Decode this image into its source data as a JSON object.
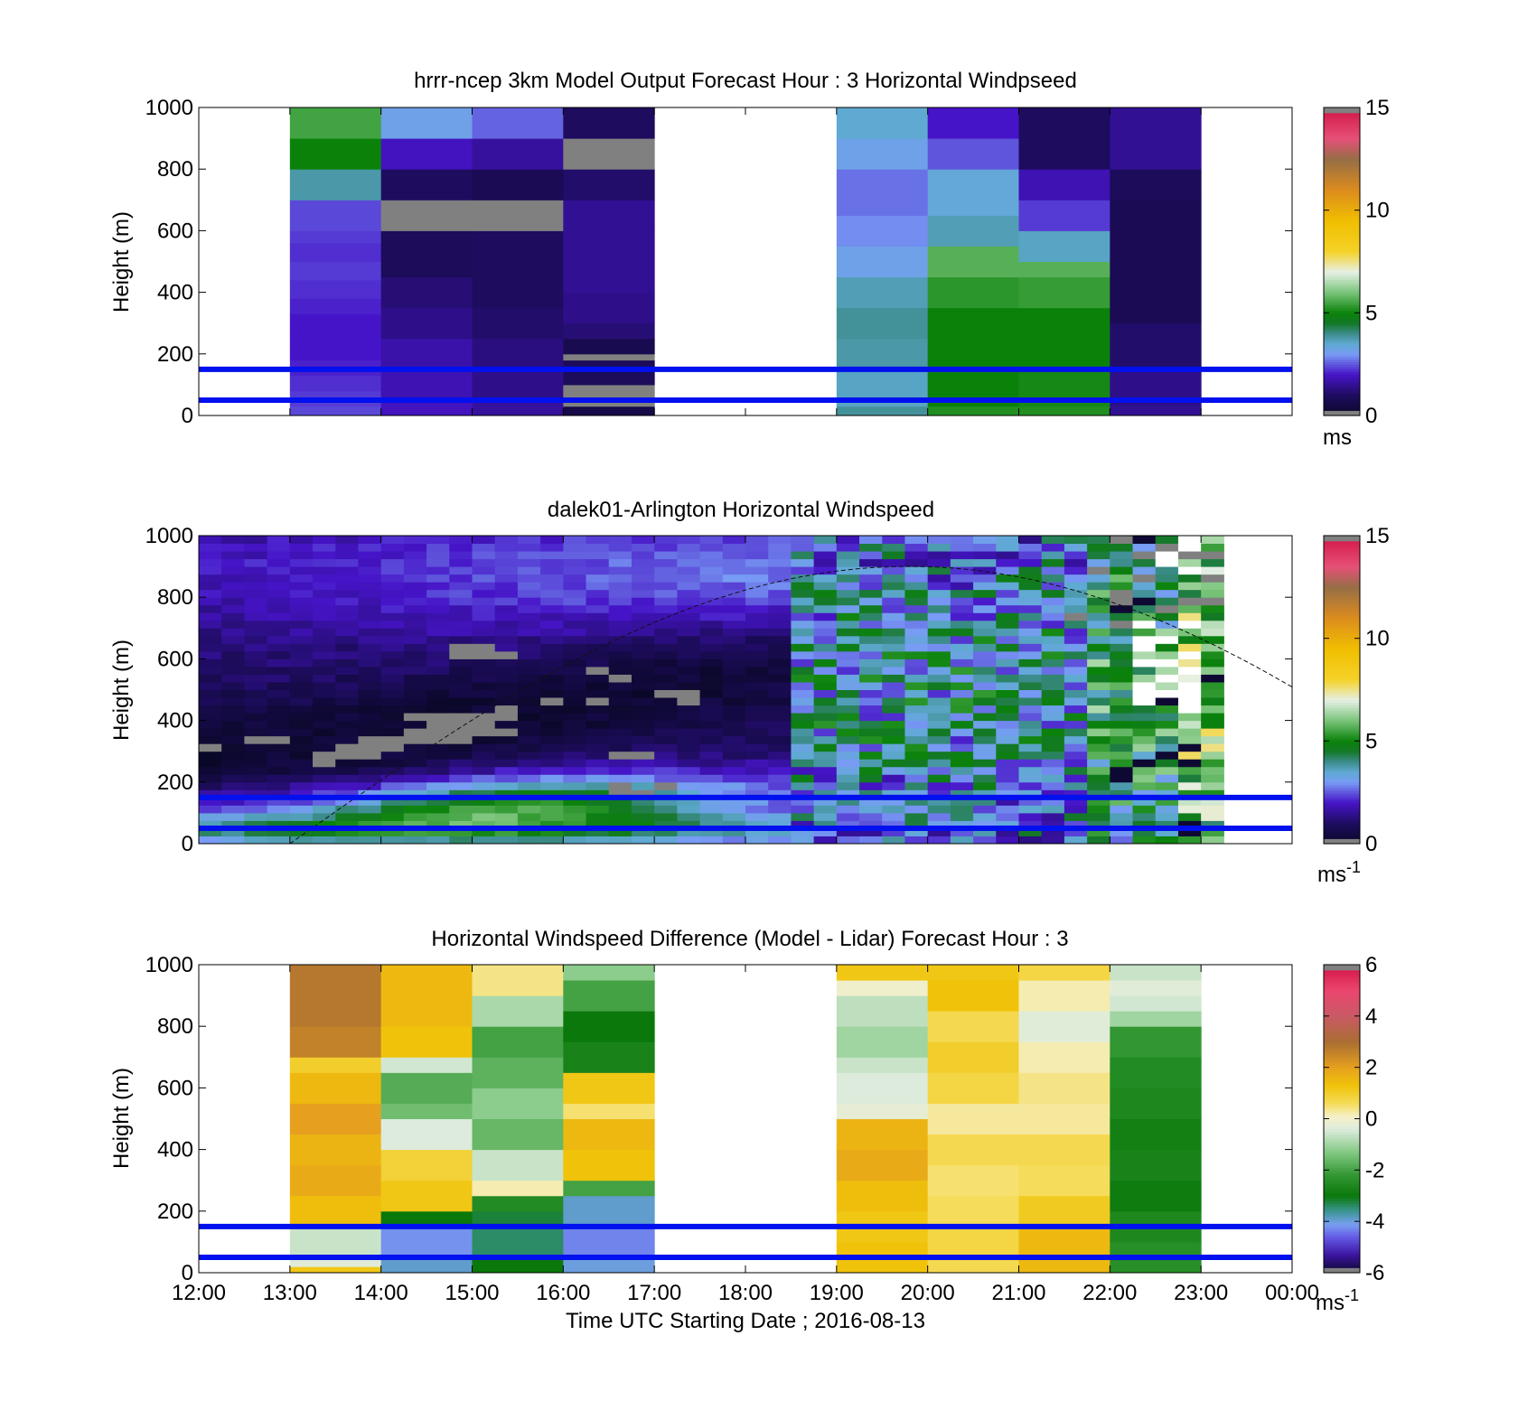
{
  "chart_data": [
    {
      "type": "heatmap",
      "title": "hrrr-ncep 3km Model Output   Forecast Hour : 3 Horizontal Windpseed",
      "ylabel": "Height (m)",
      "xlabel": "",
      "ylim": [
        0,
        1000
      ],
      "yticks": [
        "0",
        "200",
        "400",
        "600",
        "800",
        "1000"
      ],
      "colorbar": {
        "ticks": [
          "0",
          "5",
          "10",
          "15"
        ],
        "range": [
          0,
          15
        ],
        "unit": "ms",
        "unit_sup": ""
      },
      "scale": "speed",
      "columns": [
        {
          "start_hour": 13,
          "cells": [
            [
              0,
              30,
              2.4
            ],
            [
              30,
              80,
              2.3
            ],
            [
              80,
              130,
              2.2
            ],
            [
              130,
              180,
              2.1
            ],
            [
              180,
              230,
              2.0
            ],
            [
              230,
              280,
              2.0
            ],
            [
              280,
              330,
              2.0
            ],
            [
              330,
              380,
              2.1
            ],
            [
              380,
              440,
              2.2
            ],
            [
              440,
              500,
              2.3
            ],
            [
              500,
              560,
              2.2
            ],
            [
              560,
              600,
              2.3
            ],
            [
              600,
              700,
              2.4
            ],
            [
              700,
              800,
              3.8
            ],
            [
              800,
              900,
              5.0
            ],
            [
              900,
              1000,
              5.5
            ]
          ]
        },
        {
          "start_hour": 14,
          "cells": [
            [
              0,
              50,
              1.9
            ],
            [
              50,
              150,
              1.8
            ],
            [
              150,
              250,
              1.7
            ],
            [
              250,
              350,
              1.4
            ],
            [
              350,
              450,
              1.2
            ],
            [
              450,
              600,
              0.9
            ],
            [
              600,
              700,
              -1
            ],
            [
              700,
              800,
              1.0
            ],
            [
              800,
              900,
              1.9
            ],
            [
              900,
              1000,
              3.2
            ]
          ]
        },
        {
          "start_hour": 15,
          "cells": [
            [
              0,
              50,
              1.6
            ],
            [
              50,
              150,
              1.4
            ],
            [
              150,
              250,
              1.3
            ],
            [
              250,
              350,
              1.1
            ],
            [
              350,
              600,
              1.0
            ],
            [
              600,
              700,
              -1
            ],
            [
              700,
              800,
              0.8
            ],
            [
              800,
              900,
              1.6
            ],
            [
              900,
              1000,
              2.6
            ]
          ]
        },
        {
          "start_hour": 16,
          "cells": [
            [
              0,
              30,
              0.6
            ],
            [
              30,
              100,
              -1
            ],
            [
              100,
              180,
              0.9
            ],
            [
              180,
              200,
              -1
            ],
            [
              200,
              250,
              0.7
            ],
            [
              250,
              300,
              1.2
            ],
            [
              300,
              400,
              1.4
            ],
            [
              400,
              600,
              1.5
            ],
            [
              600,
              700,
              1.5
            ],
            [
              700,
              800,
              1.1
            ],
            [
              800,
              900,
              -1
            ],
            [
              900,
              1000,
              1.0
            ]
          ]
        },
        {
          "start_hour": 19,
          "cells": [
            [
              0,
              30,
              3.9
            ],
            [
              30,
              150,
              3.6
            ],
            [
              150,
              250,
              3.8
            ],
            [
              250,
              350,
              3.9
            ],
            [
              350,
              450,
              3.7
            ],
            [
              450,
              550,
              3.2
            ],
            [
              550,
              650,
              2.9
            ],
            [
              650,
              800,
              2.7
            ],
            [
              800,
              900,
              3.2
            ],
            [
              900,
              1000,
              3.5
            ]
          ]
        },
        {
          "start_hour": 20,
          "cells": [
            [
              0,
              30,
              5.2
            ],
            [
              30,
              150,
              5.0
            ],
            [
              150,
              350,
              5.0
            ],
            [
              350,
              450,
              5.3
            ],
            [
              450,
              550,
              5.7
            ],
            [
              550,
              650,
              3.7
            ],
            [
              650,
              800,
              3.4
            ],
            [
              800,
              900,
              2.5
            ],
            [
              900,
              1000,
              2.0
            ]
          ]
        },
        {
          "start_hour": 21,
          "cells": [
            [
              0,
              30,
              5.2
            ],
            [
              30,
              150,
              5.1
            ],
            [
              150,
              350,
              5.0
            ],
            [
              350,
              450,
              5.4
            ],
            [
              450,
              500,
              5.7
            ],
            [
              500,
              600,
              3.6
            ],
            [
              600,
              700,
              2.3
            ],
            [
              700,
              800,
              1.8
            ],
            [
              800,
              900,
              1.0
            ],
            [
              900,
              1000,
              1.0
            ]
          ]
        },
        {
          "start_hour": 22,
          "cells": [
            [
              0,
              30,
              1.5
            ],
            [
              30,
              150,
              1.4
            ],
            [
              150,
              300,
              1.1
            ],
            [
              300,
              500,
              0.8
            ],
            [
              500,
              700,
              0.8
            ],
            [
              700,
              800,
              0.9
            ],
            [
              800,
              1000,
              1.5
            ]
          ]
        }
      ],
      "reference_lines_m": [
        50,
        150
      ]
    },
    {
      "type": "heatmap",
      "title": "dalek01-Arlington  Horizontal Windspeed",
      "ylabel": "Height (m)",
      "xlabel": "",
      "ylim": [
        0,
        1000
      ],
      "yticks": [
        "0",
        "200",
        "400",
        "600",
        "800",
        "1000"
      ],
      "colorbar": {
        "ticks": [
          "0",
          "5",
          "10",
          "15"
        ],
        "range": [
          0,
          15
        ],
        "unit": "ms",
        "unit_sup": "-1"
      },
      "scale": "speed",
      "time_range_hours": [
        12,
        24
      ],
      "data_end_hour": 23.25,
      "note_curve": "dashed curve rising from 13:00 at 0 m to ~900 m near 20:00 then falling to ~570 m at 00:00",
      "reference_lines_m": [
        50,
        150
      ]
    },
    {
      "type": "heatmap",
      "title": "Horizontal Windspeed Difference (Model - Lidar) Forecast Hour : 3",
      "ylabel": "Height (m)",
      "xlabel": "Time UTC  Starting Date ; 2016-08-13",
      "ylim": [
        0,
        1000
      ],
      "yticks": [
        "0",
        "200",
        "400",
        "600",
        "800",
        "1000"
      ],
      "xticks": [
        "12:00",
        "13:00",
        "14:00",
        "15:00",
        "16:00",
        "17:00",
        "18:00",
        "19:00",
        "20:00",
        "21:00",
        "22:00",
        "23:00",
        "00:00"
      ],
      "colorbar": {
        "ticks": [
          "-6",
          "-4",
          "-2",
          "0",
          "2",
          "4",
          "6"
        ],
        "range": [
          -6,
          6
        ],
        "unit": "ms",
        "unit_sup": "-1"
      },
      "scale": "diff",
      "columns": [
        {
          "start_hour": 13,
          "cells": [
            [
              0,
              20,
              1.2
            ],
            [
              20,
              50,
              -0.3
            ],
            [
              50,
              150,
              -0.6
            ],
            [
              150,
              250,
              1.4
            ],
            [
              250,
              350,
              1.8
            ],
            [
              350,
              450,
              1.6
            ],
            [
              450,
              550,
              2.0
            ],
            [
              550,
              650,
              1.5
            ],
            [
              650,
              700,
              1.0
            ],
            [
              700,
              800,
              2.6
            ],
            [
              800,
              1000,
              2.8
            ]
          ]
        },
        {
          "start_hour": 14,
          "cells": [
            [
              0,
              50,
              -3.9
            ],
            [
              50,
              150,
              -4.2
            ],
            [
              150,
              200,
              -3.0
            ],
            [
              200,
              300,
              1.2
            ],
            [
              300,
              400,
              0.9
            ],
            [
              400,
              500,
              -0.4
            ],
            [
              500,
              550,
              -1.5
            ],
            [
              550,
              650,
              -1.8
            ],
            [
              650,
              700,
              -0.5
            ],
            [
              700,
              800,
              1.3
            ],
            [
              800,
              1000,
              1.5
            ]
          ]
        },
        {
          "start_hour": 15,
          "cells": [
            [
              0,
              50,
              -3.0
            ],
            [
              50,
              150,
              -3.4
            ],
            [
              150,
              200,
              -3.2
            ],
            [
              200,
              250,
              -2.5
            ],
            [
              250,
              300,
              0.2
            ],
            [
              300,
              400,
              -0.6
            ],
            [
              400,
              500,
              -1.6
            ],
            [
              500,
              600,
              -1.2
            ],
            [
              600,
              700,
              -1.7
            ],
            [
              700,
              800,
              -2.0
            ],
            [
              800,
              900,
              -0.9
            ],
            [
              900,
              1000,
              0.4
            ]
          ]
        },
        {
          "start_hour": 16,
          "cells": [
            [
              0,
              50,
              -4.0
            ],
            [
              50,
              150,
              -4.3
            ],
            [
              150,
              250,
              -3.9
            ],
            [
              250,
              300,
              -2.0
            ],
            [
              300,
              400,
              1.3
            ],
            [
              400,
              500,
              1.5
            ],
            [
              500,
              550,
              0.5
            ],
            [
              550,
              650,
              1.2
            ],
            [
              650,
              750,
              -2.7
            ],
            [
              750,
              850,
              -3.0
            ],
            [
              850,
              950,
              -2.0
            ],
            [
              950,
              1000,
              -1.2
            ]
          ]
        },
        {
          "start_hour": 19,
          "cells": [
            [
              0,
              100,
              1.3
            ],
            [
              100,
              200,
              1.2
            ],
            [
              200,
              300,
              1.4
            ],
            [
              300,
              400,
              1.8
            ],
            [
              400,
              500,
              1.6
            ],
            [
              500,
              550,
              -0.2
            ],
            [
              550,
              650,
              -0.4
            ],
            [
              650,
              700,
              -0.6
            ],
            [
              700,
              800,
              -1.0
            ],
            [
              800,
              900,
              -0.7
            ],
            [
              900,
              950,
              0.0
            ],
            [
              950,
              1000,
              1.2
            ]
          ]
        },
        {
          "start_hour": 20,
          "cells": [
            [
              0,
              50,
              0.7
            ],
            [
              50,
              150,
              0.8
            ],
            [
              150,
              250,
              0.6
            ],
            [
              250,
              350,
              0.5
            ],
            [
              350,
              450,
              0.7
            ],
            [
              450,
              550,
              0.3
            ],
            [
              550,
              650,
              0.8
            ],
            [
              650,
              750,
              1.0
            ],
            [
              750,
              850,
              0.7
            ],
            [
              850,
              950,
              1.3
            ],
            [
              950,
              1000,
              1.2
            ]
          ]
        },
        {
          "start_hour": 21,
          "cells": [
            [
              0,
              150,
              1.5
            ],
            [
              150,
              250,
              1.1
            ],
            [
              250,
              350,
              0.6
            ],
            [
              350,
              450,
              0.7
            ],
            [
              450,
              550,
              0.3
            ],
            [
              550,
              650,
              0.4
            ],
            [
              650,
              750,
              0.2
            ],
            [
              750,
              850,
              -0.3
            ],
            [
              850,
              950,
              0.2
            ],
            [
              950,
              1000,
              0.8
            ]
          ]
        },
        {
          "start_hour": 22,
          "cells": [
            [
              0,
              100,
              -2.4
            ],
            [
              100,
              200,
              -2.6
            ],
            [
              200,
              300,
              -2.9
            ],
            [
              300,
              400,
              -2.7
            ],
            [
              400,
              500,
              -2.8
            ],
            [
              500,
              600,
              -2.6
            ],
            [
              600,
              700,
              -2.5
            ],
            [
              700,
              800,
              -2.2
            ],
            [
              800,
              850,
              -1.0
            ],
            [
              850,
              900,
              -0.5
            ],
            [
              900,
              950,
              -0.3
            ],
            [
              950,
              1000,
              -0.6
            ]
          ]
        }
      ],
      "reference_lines_m": [
        50,
        150
      ]
    }
  ]
}
